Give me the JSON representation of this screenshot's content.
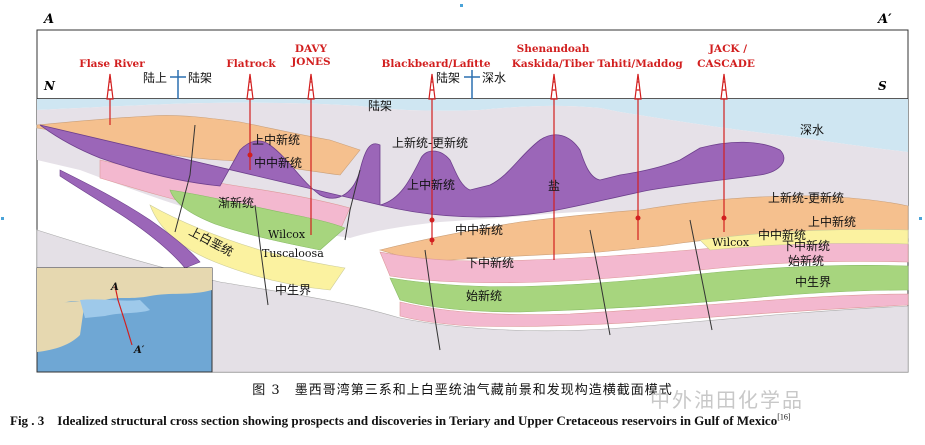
{
  "section": {
    "left": "A",
    "right": "A′",
    "north": "N",
    "south": "S"
  },
  "wells": [
    "Flase River",
    "Flatrock",
    "DAVY",
    "JONES",
    "Blackbeard/Lafitte",
    "Shenandoah",
    "Kaskida/Tiber",
    "Tahiti/Maddog",
    "JACK /",
    "CASCADE"
  ],
  "markers": {
    "onshore": "陆上",
    "shelf_a": "陆架",
    "shelf_b": "陆架",
    "deepwater": "深水"
  },
  "layers": {
    "shelf": "陆架",
    "deepwater": "深水",
    "upper_miocene_1": "上中新统",
    "middle_miocene_1": "中中新统",
    "pliocene_pleistocene_1": "上新统-更新统",
    "upper_miocene_2": "上中新统",
    "oligocene": "渐新统",
    "salt": "盐",
    "wilcox_1": "Wilcox",
    "upper_cretaceous": "上白垩统",
    "tuscaloosa": "Tuscaloosa",
    "middle_miocene_2": "中中新统",
    "lower_miocene_1": "下中新统",
    "mesozoic_1": "中生界",
    "eocene_1": "始新统",
    "pliocene_pleistocene_2": "上新统-更新统",
    "upper_miocene_3": "上中新统",
    "wilcox_2": "Wilcox",
    "middle_miocene_3": "中中新统",
    "lower_miocene_2": "下中新统",
    "eocene_2": "始新统",
    "mesozoic_2": "中生界"
  },
  "inset_labels": {
    "a": "A",
    "a_prime": "A′"
  },
  "caption": {
    "cn": "图 3　墨西哥湾第三系和上白垩统油气藏前景和发现构造横截面模式",
    "en": "Fig . 3　Idealized structural cross section showing prospects and discoveries in Teriary and Upper Cretaceous reservoirs in Gulf of Mexico",
    "ref": "[16]"
  },
  "watermark": "中外油田化学品",
  "colors": {
    "sea": "#cfe6f2",
    "purple": "#9b66b8",
    "pink": "#f3b8cf",
    "orange": "#f5c08e",
    "green": "#a7d57e",
    "yellow": "#fbf2a0",
    "gray": "#e6e1e8",
    "well": "#d21f1f"
  }
}
